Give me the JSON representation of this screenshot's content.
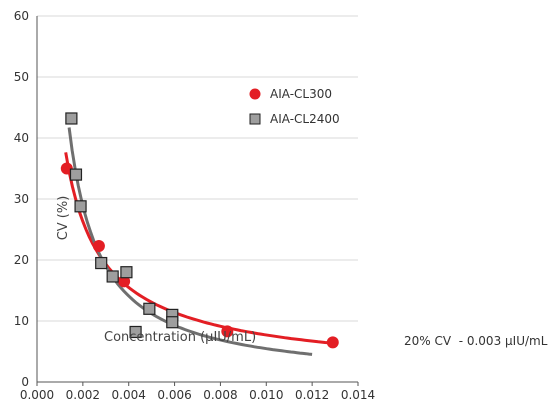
{
  "chart_data": {
    "type": "scatter",
    "xlabel": "Concentration (µIU/mL)",
    "ylabel": "CV (%)",
    "xlim": [
      0,
      0.014
    ],
    "ylim": [
      0,
      60
    ],
    "x_ticks": [
      "0.000",
      "0.002",
      "0.004",
      "0.006",
      "0.008",
      "0.010",
      "0.012",
      "0.014"
    ],
    "y_ticks": [
      "0",
      "10",
      "20",
      "30",
      "40",
      "50",
      "60"
    ],
    "grid": "horizontal",
    "legend_position": "right",
    "series": [
      {
        "name": "AIA-CL300",
        "marker": "circle",
        "color": "#e31e24",
        "points": [
          [
            0.0013,
            35.0
          ],
          [
            0.0027,
            22.3
          ],
          [
            0.0038,
            16.5
          ],
          [
            0.0083,
            8.3
          ],
          [
            0.0129,
            6.5
          ]
        ],
        "fit_color": "#e31e24",
        "fit_x_range": [
          0.00125,
          0.013
        ]
      },
      {
        "name": "AIA-CL2400",
        "marker": "square",
        "color": "#9e9e9e",
        "points": [
          [
            0.0015,
            43.2
          ],
          [
            0.0017,
            34.0
          ],
          [
            0.0019,
            28.8
          ],
          [
            0.0028,
            19.5
          ],
          [
            0.0033,
            17.3
          ],
          [
            0.0039,
            18.0
          ],
          [
            0.0049,
            12.0
          ],
          [
            0.0043,
            8.2
          ],
          [
            0.0059,
            11.0
          ],
          [
            0.0059,
            9.8
          ]
        ],
        "fit_color": "#6f6f6f",
        "fit_x_range": [
          0.0014,
          0.012
        ]
      }
    ]
  },
  "annotation": "20% CV  - 0.003 µIU/mL"
}
